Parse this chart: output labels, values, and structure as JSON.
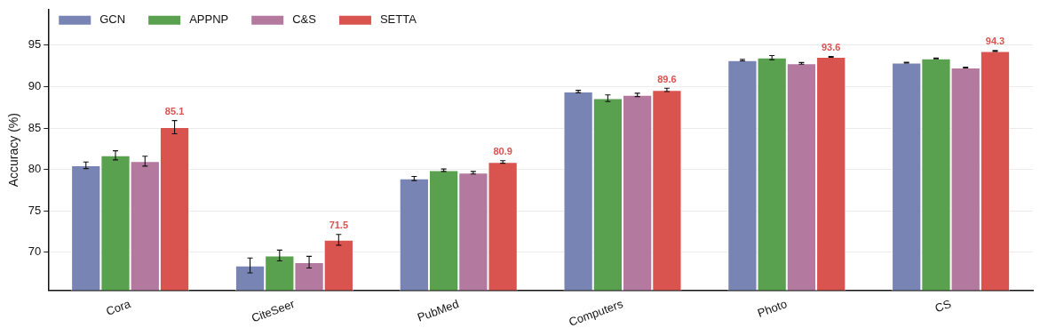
{
  "chart_data": {
    "type": "bar",
    "ylabel": "Accuracy (%)",
    "categories": [
      "Cora",
      "CiteSeer",
      "PubMed",
      "Computers",
      "Photo",
      "CS"
    ],
    "series": [
      {
        "name": "GCN",
        "color": "#7884b4",
        "values": [
          80.5,
          68.4,
          78.9,
          89.4,
          93.2,
          92.9
        ],
        "errors": [
          0.4,
          0.9,
          0.25,
          0.15,
          0.1,
          0.05
        ]
      },
      {
        "name": "APPNP",
        "color": "#5aa14f",
        "values": [
          81.7,
          69.6,
          79.9,
          88.6,
          93.5,
          93.4
        ],
        "errors": [
          0.55,
          0.65,
          0.15,
          0.4,
          0.25,
          0.05
        ]
      },
      {
        "name": "C&S",
        "color": "#b3799f",
        "values": [
          81.0,
          68.8,
          79.6,
          89.0,
          92.8,
          92.3
        ],
        "errors": [
          0.6,
          0.7,
          0.15,
          0.2,
          0.1,
          0.05
        ]
      },
      {
        "name": "SETTA",
        "color": "#d9534f",
        "values": [
          85.1,
          71.5,
          80.9,
          89.6,
          93.6,
          94.3
        ],
        "errors": [
          0.8,
          0.65,
          0.15,
          0.2,
          0.05,
          0.05
        ],
        "value_labels": [
          "85.1",
          "71.5",
          "80.9",
          "89.6",
          "93.6",
          "94.3"
        ]
      }
    ],
    "ylim": [
      65.4,
      99.3
    ],
    "yticks": [
      70,
      75,
      80,
      85,
      90,
      95
    ],
    "grid": "y",
    "legend": "top left"
  }
}
